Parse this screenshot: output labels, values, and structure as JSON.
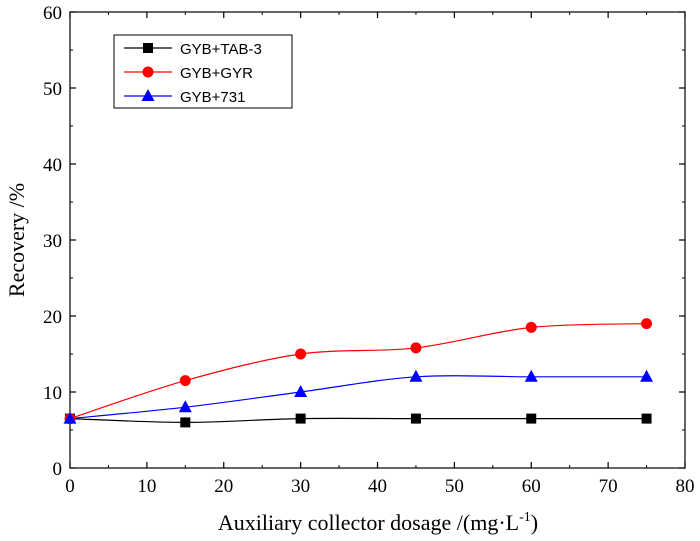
{
  "chart_data": {
    "type": "line",
    "xlabel": "Auxiliary collector dosage /(mg·L",
    "xlabel_superscript": "-1",
    "xlabel_suffix": ")",
    "ylabel": "Recovery /%",
    "xlim": [
      0,
      80
    ],
    "ylim": [
      0,
      60
    ],
    "x_ticks": [
      "0",
      "10",
      "20",
      "30",
      "40",
      "50",
      "60",
      "70",
      "80"
    ],
    "y_ticks": [
      "0",
      "10",
      "20",
      "30",
      "40",
      "50",
      "60"
    ],
    "grid": false,
    "legend_position": "top-left",
    "series": [
      {
        "name": "GYB+TAB-3",
        "color": "#000000",
        "marker": "square",
        "x": [
          0,
          15,
          30,
          45,
          60,
          75
        ],
        "values": [
          6.5,
          6.0,
          6.5,
          6.5,
          6.5,
          6.5
        ]
      },
      {
        "name": "GYB+GYR",
        "color": "#ff0000",
        "marker": "circle",
        "x": [
          0,
          15,
          30,
          45,
          60,
          75
        ],
        "values": [
          6.5,
          11.5,
          15.0,
          15.8,
          18.5,
          19.0
        ]
      },
      {
        "name": "GYB+731",
        "color": "#0000ff",
        "marker": "triangle",
        "x": [
          0,
          15,
          30,
          45,
          60,
          75
        ],
        "values": [
          6.5,
          8.0,
          10.0,
          12.0,
          12.0,
          12.0
        ]
      }
    ]
  }
}
